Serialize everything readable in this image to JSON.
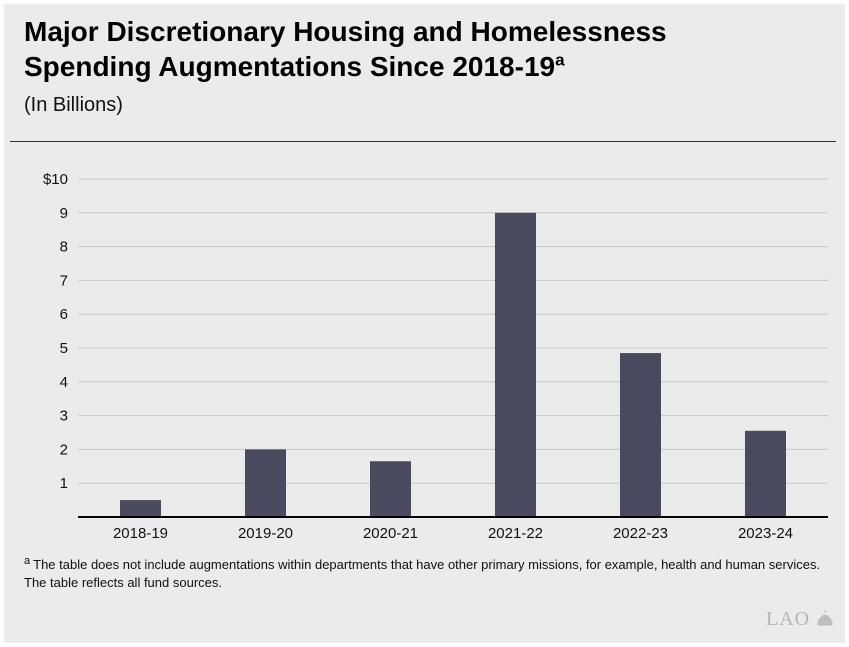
{
  "header": {
    "title_line1": "Major Discretionary Housing and Homelessness",
    "title_line2": "Spending Augmentations Since 2018-19",
    "title_superscript": "a",
    "subtitle": "(In Billions)"
  },
  "chart_data": {
    "type": "bar",
    "categories": [
      "2018-19",
      "2019-20",
      "2020-21",
      "2021-22",
      "2022-23",
      "2023-24"
    ],
    "values": [
      0.5,
      2.0,
      1.65,
      9.0,
      4.85,
      2.55
    ],
    "ylim": [
      0,
      10
    ],
    "yticks": [
      1,
      2,
      3,
      4,
      5,
      6,
      7,
      8,
      9,
      10
    ],
    "ytick_labels": [
      "1",
      "2",
      "3",
      "4",
      "5",
      "6",
      "7",
      "8",
      "9",
      "$10"
    ],
    "grid": true,
    "bar_color": "#4a4a5e",
    "grid_color": "#c8c8c8"
  },
  "footnote": {
    "marker": "a",
    "text": "The table does not include augmentations within departments that have other primary missions, for example, health and human services. The table reflects all fund sources."
  },
  "logo": {
    "text": "LAO",
    "icon": "capitol-dome-icon"
  }
}
